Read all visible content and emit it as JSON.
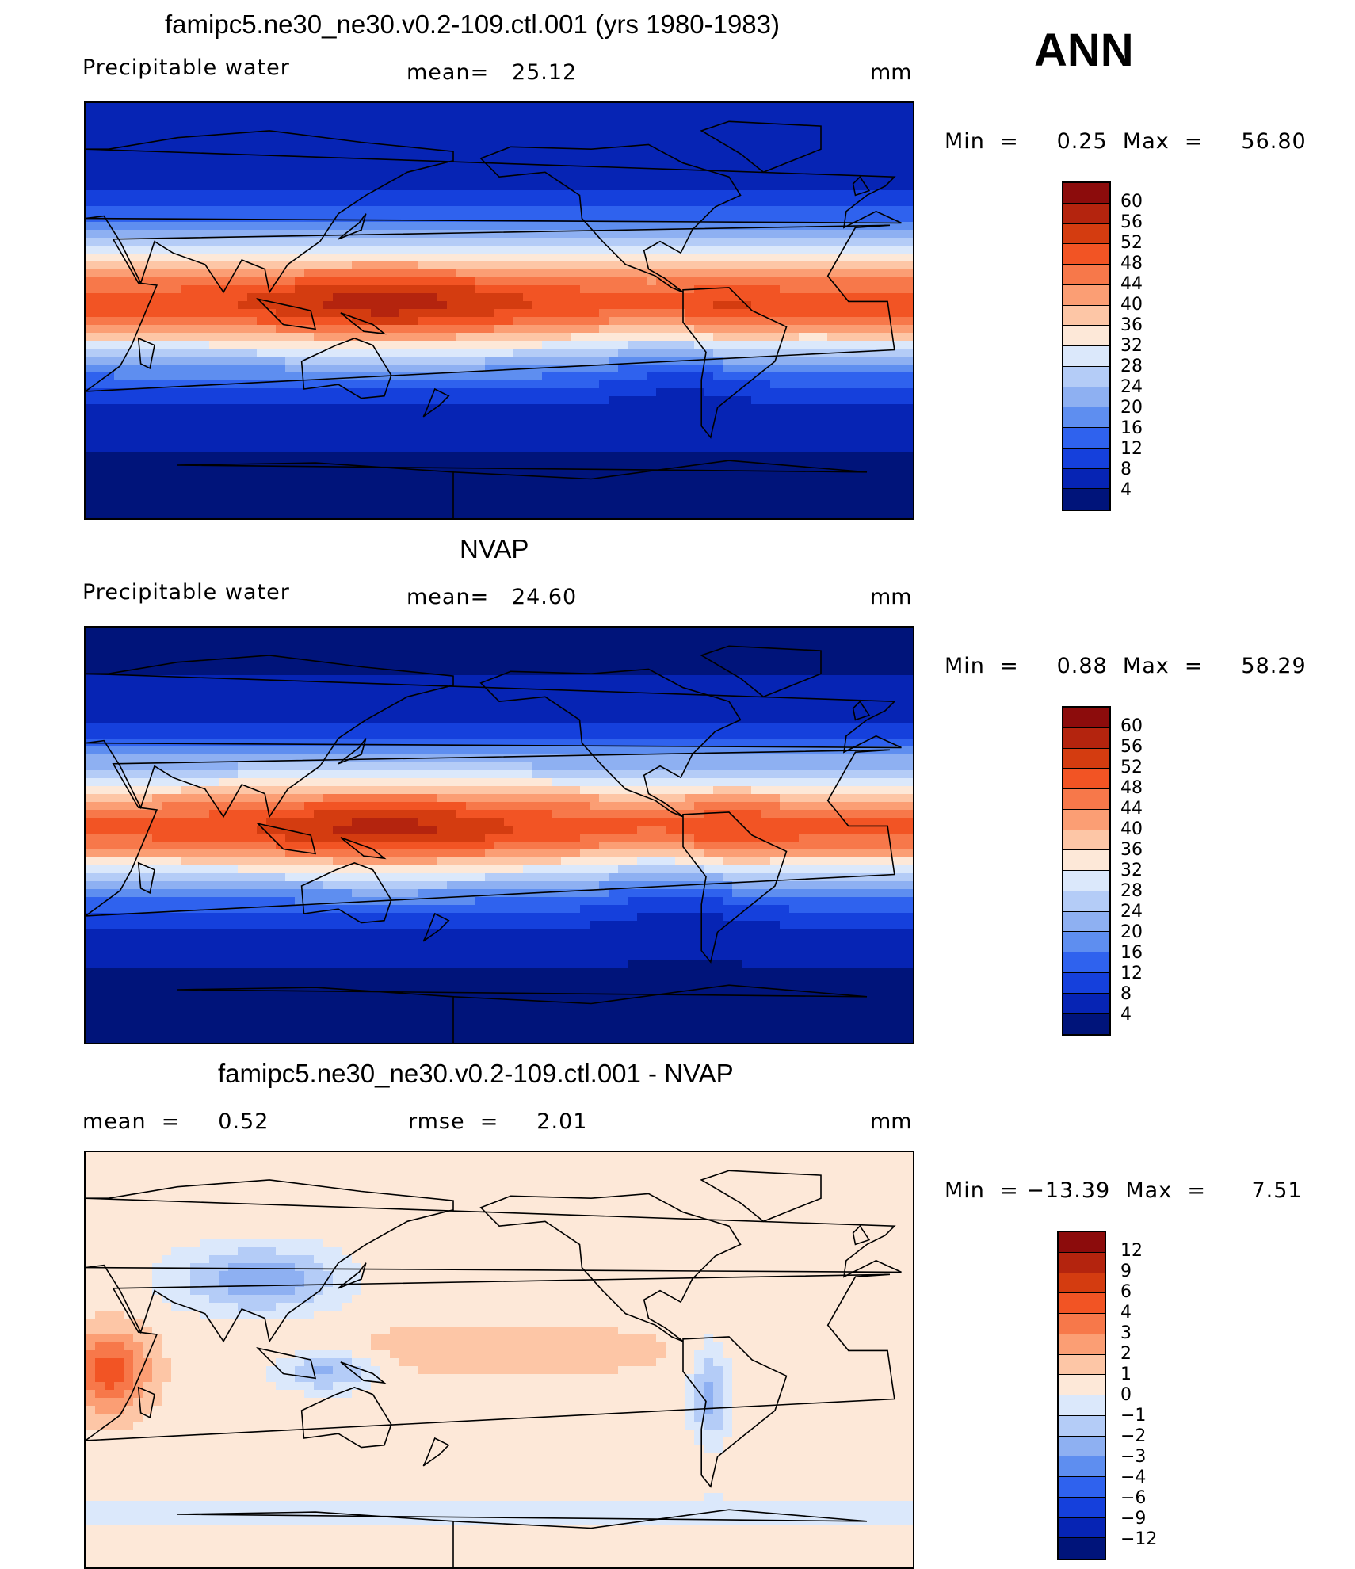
{
  "season": "ANN",
  "panels": [
    {
      "title": "famipc5.ne30_ne30.v0.2-109.ctl.001 (yrs 1980-1983)",
      "left_label": "Precipitable  water",
      "center_label": "mean=   25.12",
      "units": "mm",
      "minmax": "Min  =     0.25  Max  =     56.80",
      "palette": "abs",
      "field": "model",
      "colorbar_ticks": [
        "60",
        "56",
        "52",
        "48",
        "44",
        "40",
        "36",
        "32",
        "28",
        "24",
        "20",
        "16",
        "12",
        "8",
        "4"
      ]
    },
    {
      "title": "NVAP",
      "left_label": "Precipitable  water",
      "center_label": "mean=   24.60",
      "units": "mm",
      "minmax": "Min  =     0.88  Max  =     58.29",
      "palette": "abs",
      "field": "obs",
      "colorbar_ticks": [
        "60",
        "56",
        "52",
        "48",
        "44",
        "40",
        "36",
        "32",
        "28",
        "24",
        "20",
        "16",
        "12",
        "8",
        "4"
      ]
    },
    {
      "title": "famipc5.ne30_ne30.v0.2-109.ctl.001 - NVAP",
      "left_label": "mean  =     0.52",
      "center_label": "rmse  =     2.01",
      "units": "mm",
      "minmax": "Min  = −13.39  Max  =      7.51",
      "palette": "diff",
      "field": "diff",
      "colorbar_ticks": [
        "12",
        "9",
        "6",
        "4",
        "3",
        "2",
        "1",
        "0",
        "−1",
        "−2",
        "−3",
        "−4",
        "−6",
        "−9",
        "−12"
      ]
    }
  ],
  "palettes": {
    "abs": [
      "#8c0c0c",
      "#b4240e",
      "#d43c10",
      "#f25424",
      "#f7784a",
      "#fb9e74",
      "#fdc6a6",
      "#fde8d8",
      "#dbe8fb",
      "#b4ccf7",
      "#8eb0f2",
      "#5e8ef0",
      "#2f62ee",
      "#1540dc",
      "#0624b4",
      "#00147a"
    ],
    "diff": [
      "#8c0c0c",
      "#b4240e",
      "#d43c10",
      "#f25424",
      "#f7784a",
      "#fb9e74",
      "#fdc6a6",
      "#fde8d8",
      "#dbe8fb",
      "#b4ccf7",
      "#8eb0f2",
      "#5e8ef0",
      "#2f62ee",
      "#1540dc",
      "#0624b4",
      "#00147a"
    ]
  }
}
